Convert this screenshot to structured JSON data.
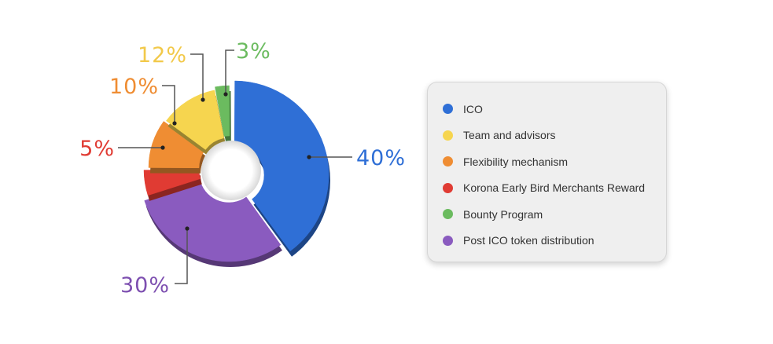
{
  "chart_data": {
    "type": "pie",
    "donut": true,
    "title": "",
    "legend_position": "right",
    "slices": [
      {
        "label": "ICO",
        "value": 40,
        "value_label": "40%",
        "color": "#2f6fd6"
      },
      {
        "label": "Post ICO token distribution",
        "value": 30,
        "value_label": "30%",
        "color": "#8a5bbf"
      },
      {
        "label": "Korona Early Bird Merchants Reward",
        "value": 5,
        "value_label": "5%",
        "color": "#e03b33"
      },
      {
        "label": "Flexibility mechanism",
        "value": 10,
        "value_label": "10%",
        "color": "#ef8d33"
      },
      {
        "label": "Team and advisors",
        "value": 12,
        "value_label": "12%",
        "color": "#f6d54f"
      },
      {
        "label": "Bounty Program",
        "value": 3,
        "value_label": "3%",
        "color": "#6bbb5f"
      }
    ]
  },
  "legend": {
    "items": [
      {
        "label": "ICO",
        "color": "#2f6fd6"
      },
      {
        "label": "Team and advisors",
        "color": "#f6d54f"
      },
      {
        "label": "Flexibility mechanism",
        "color": "#ef8d33"
      },
      {
        "label": "Korona Early Bird Merchants Reward",
        "color": "#e03b33"
      },
      {
        "label": "Bounty Program",
        "color": "#6bbb5f"
      },
      {
        "label": "Post ICO token distribution",
        "color": "#8a5bbf"
      }
    ]
  },
  "label_colors": {
    "ICO": "#2f6fd6",
    "Post ICO token distribution": "#7d4fb0",
    "Korona Early Bird Merchants Reward": "#e03b33",
    "Flexibility mechanism": "#ef8d33",
    "Team and advisors": "#f2c94a",
    "Bounty Program": "#6bbb5f"
  }
}
